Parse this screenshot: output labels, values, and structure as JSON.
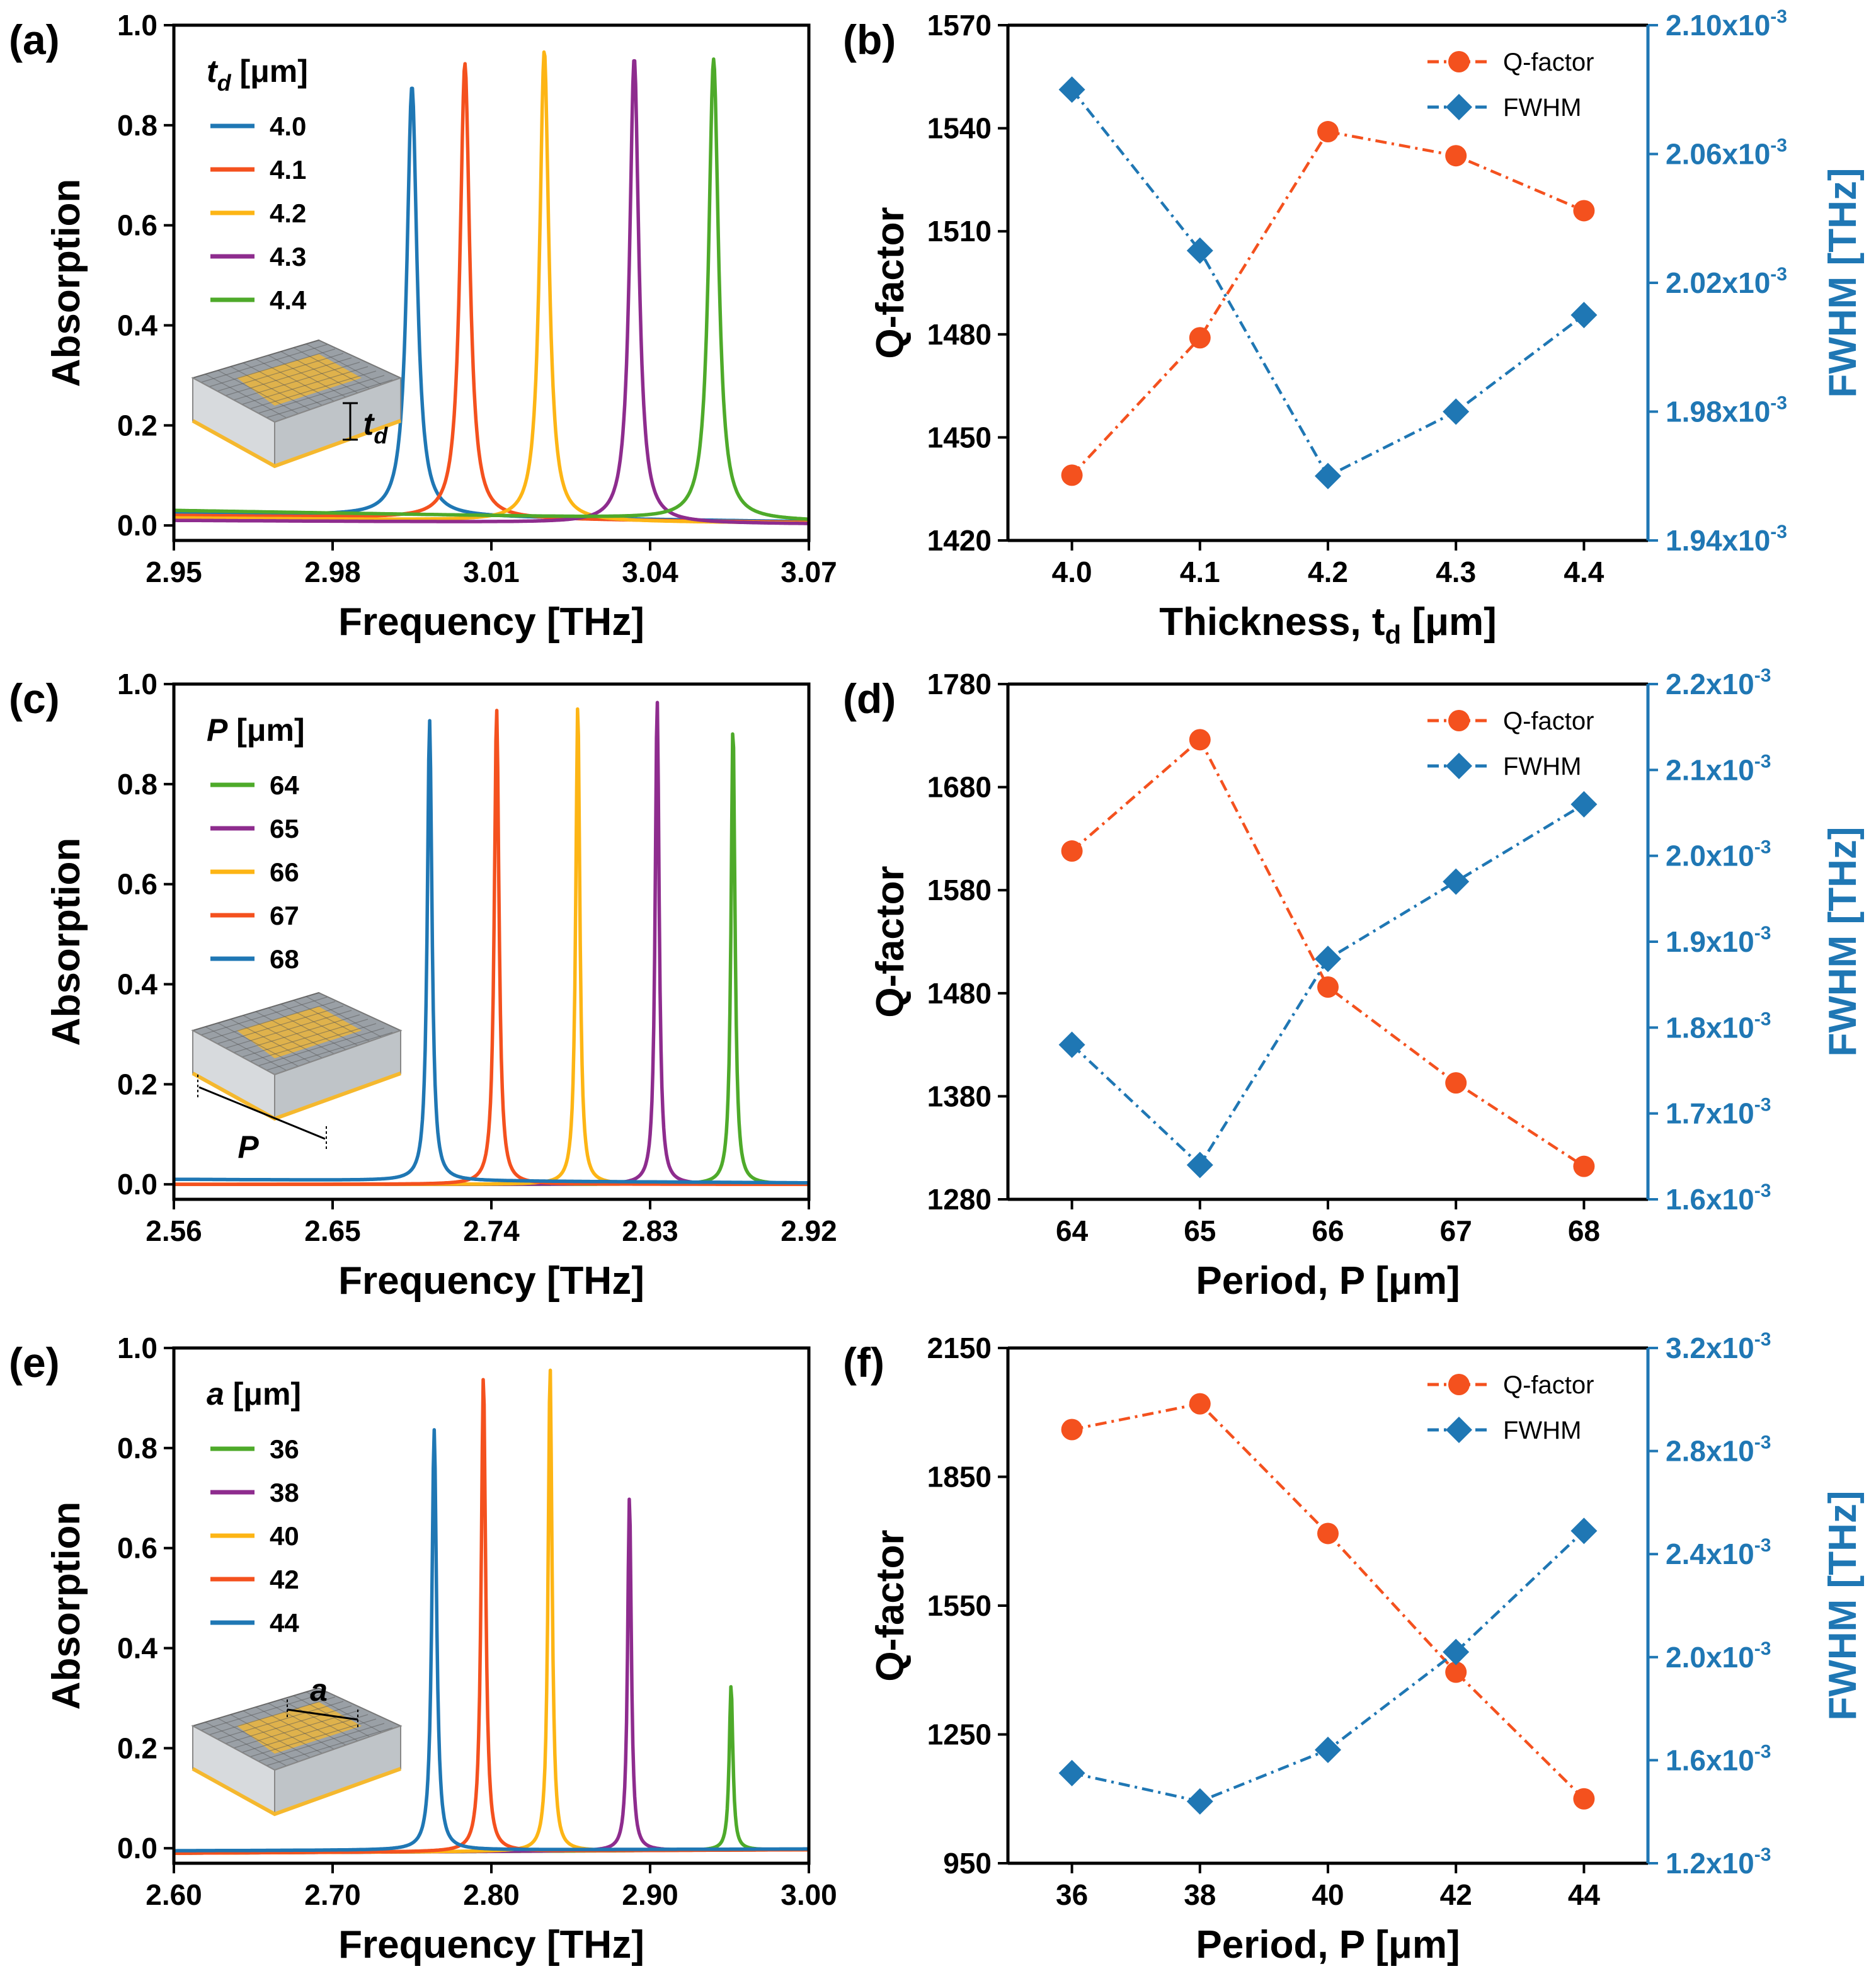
{
  "colors": {
    "orange": "#F4511E",
    "blue": "#1F77B4",
    "yellow": "#FDB515",
    "purple": "#8E2C8E",
    "green": "#4EAA2A",
    "gold": "#F5B82E",
    "gray": "#888888"
  },
  "chart_data": [
    {
      "id": "a",
      "panel_label": "(a)",
      "type": "line",
      "xlabel": "Frequency [THz]",
      "ylabel": "Absorption",
      "xlim": [
        2.95,
        3.07
      ],
      "ylim": [
        -0.03,
        1.0
      ],
      "xticks": [
        2.95,
        2.98,
        3.01,
        3.04,
        3.07
      ],
      "xtick_labels": [
        "2.95",
        "2.98",
        "3.01",
        "3.04",
        "3.07"
      ],
      "yticks": [
        0.0,
        0.2,
        0.4,
        0.6,
        0.8,
        1.0
      ],
      "ytick_labels": [
        "0.0",
        "0.2",
        "0.4",
        "0.6",
        "0.8",
        "1.0"
      ],
      "legend_title_var": "t",
      "legend_title_sub": "d",
      "legend_title_unit": " [μm]",
      "inset_label_var": "t",
      "inset_label_sub": "d",
      "series": [
        {
          "name": "4.0",
          "color": "#1F77B4",
          "center": 2.995,
          "peak": 0.86,
          "width": 0.00115,
          "baseline": 0.025
        },
        {
          "name": "4.1",
          "color": "#F4511E",
          "center": 3.005,
          "peak": 0.91,
          "width": 0.0011,
          "baseline": 0.02
        },
        {
          "name": "4.2",
          "color": "#FDB515",
          "center": 3.02,
          "peak": 0.94,
          "width": 0.00105,
          "baseline": 0.015
        },
        {
          "name": "4.3",
          "color": "#8E2C8E",
          "center": 3.037,
          "peak": 0.93,
          "width": 0.00105,
          "baseline": 0.01
        },
        {
          "name": "4.4",
          "color": "#4EAA2A",
          "center": 3.052,
          "peak": 0.92,
          "width": 0.00112,
          "baseline": 0.03
        }
      ]
    },
    {
      "id": "b",
      "panel_label": "(b)",
      "type": "line",
      "xlabel_main": "Thickness, t",
      "xlabel_sub": "d",
      "xlabel_unit": " [μm]",
      "ylabel": "Q-factor",
      "y2label": "FWHM [THz]",
      "categories": [
        "4.0",
        "4.1",
        "4.2",
        "4.3",
        "4.4"
      ],
      "x": [
        4.0,
        4.1,
        4.2,
        4.3,
        4.4
      ],
      "xlim": [
        3.95,
        4.45
      ],
      "ylim": [
        1420,
        1570
      ],
      "yticks": [
        1420,
        1450,
        1480,
        1510,
        1540,
        1570
      ],
      "ytick_labels": [
        "1420",
        "1450",
        "1480",
        "1510",
        "1540",
        "1570"
      ],
      "y2lim": [
        1.94,
        2.1
      ],
      "y2ticks": [
        1.94,
        1.98,
        2.02,
        2.06,
        2.1
      ],
      "y2tick_mantissas": [
        "1.94x10",
        "1.98x10",
        "2.02x10",
        "2.06x10",
        "2.10x10"
      ],
      "y2_exponent": "-3",
      "series": [
        {
          "name": "Q-factor",
          "axis": "left",
          "marker": "circle",
          "color": "#F4511E",
          "values": [
            1439,
            1479,
            1539,
            1532,
            1516
          ]
        },
        {
          "name": "FWHM",
          "axis": "right",
          "marker": "diamond",
          "color": "#1F77B4",
          "values": [
            2.08,
            2.03,
            1.96,
            1.98,
            2.01
          ]
        }
      ]
    },
    {
      "id": "c",
      "panel_label": "(c)",
      "type": "line",
      "xlabel": "Frequency [THz]",
      "ylabel": "Absorption",
      "xlim": [
        2.56,
        2.92
      ],
      "ylim": [
        -0.03,
        1.0
      ],
      "xticks": [
        2.56,
        2.65,
        2.74,
        2.83,
        2.92
      ],
      "xtick_labels": [
        "2.56",
        "2.65",
        "2.74",
        "2.83",
        "2.92"
      ],
      "yticks": [
        0.0,
        0.2,
        0.4,
        0.6,
        0.8,
        1.0
      ],
      "ytick_labels": [
        "0.0",
        "0.2",
        "0.4",
        "0.6",
        "0.8",
        "1.0"
      ],
      "legend_title_var": "P",
      "legend_title_sub": "",
      "legend_title_unit": " [μm]",
      "inset_label_var": "P",
      "inset_label_sub": "",
      "series": [
        {
          "name": "64",
          "color": "#4EAA2A",
          "center": 2.877,
          "peak": 0.92,
          "width": 0.00135,
          "baseline": 0.0
        },
        {
          "name": "65",
          "color": "#8E2C8E",
          "center": 2.834,
          "peak": 0.97,
          "width": 0.00135,
          "baseline": 0.0
        },
        {
          "name": "66",
          "color": "#FDB515",
          "center": 2.789,
          "peak": 0.96,
          "width": 0.0014,
          "baseline": 0.0
        },
        {
          "name": "67",
          "color": "#F4511E",
          "center": 2.743,
          "peak": 0.95,
          "width": 0.0016,
          "baseline": 0.0
        },
        {
          "name": "68",
          "color": "#1F77B4",
          "center": 2.705,
          "peak": 0.92,
          "width": 0.0016,
          "baseline": 0.01
        }
      ]
    },
    {
      "id": "d",
      "panel_label": "(d)",
      "type": "line",
      "xlabel": "Period, P [μm]",
      "ylabel": "Q-factor",
      "y2label": "FWHM [THz]",
      "categories": [
        "64",
        "65",
        "66",
        "67",
        "68"
      ],
      "x": [
        64,
        65,
        66,
        67,
        68
      ],
      "xlim": [
        63.5,
        68.5
      ],
      "ylim": [
        1280,
        1780
      ],
      "yticks": [
        1280,
        1380,
        1480,
        1580,
        1680,
        1780
      ],
      "ytick_labels": [
        "1280",
        "1380",
        "1480",
        "1580",
        "1680",
        "1780"
      ],
      "y2lim": [
        1.6,
        2.2
      ],
      "y2ticks": [
        1.6,
        1.7,
        1.8,
        1.9,
        2.0,
        2.1,
        2.2
      ],
      "y2tick_mantissas": [
        "1.6x10",
        "1.7x10",
        "1.8x10",
        "1.9x10",
        "2.0x10",
        "2.1x10",
        "2.2x10"
      ],
      "y2_exponent": "-3",
      "series": [
        {
          "name": "Q-factor",
          "axis": "left",
          "marker": "circle",
          "color": "#F4511E",
          "values": [
            1618,
            1726,
            1486,
            1393,
            1312
          ]
        },
        {
          "name": "FWHM",
          "axis": "right",
          "marker": "diamond",
          "color": "#1F77B4",
          "values": [
            1.78,
            1.64,
            1.88,
            1.97,
            2.06
          ]
        }
      ]
    },
    {
      "id": "e",
      "panel_label": "(e)",
      "type": "line",
      "xlabel": "Frequency [THz]",
      "ylabel": "Absorption",
      "xlim": [
        2.6,
        3.0
      ],
      "ylim": [
        -0.03,
        1.0
      ],
      "xticks": [
        2.6,
        2.7,
        2.8,
        2.9,
        3.0
      ],
      "xtick_labels": [
        "2.60",
        "2.70",
        "2.80",
        "2.90",
        "3.00"
      ],
      "yticks": [
        0.0,
        0.2,
        0.4,
        0.6,
        0.8,
        1.0
      ],
      "ytick_labels": [
        "0.0",
        "0.2",
        "0.4",
        "0.6",
        "0.8",
        "1.0"
      ],
      "legend_title_var": "a",
      "legend_title_sub": "",
      "legend_title_unit": " [μm]",
      "inset_label_var": "a",
      "inset_label_sub": "",
      "series": [
        {
          "name": "36",
          "color": "#4EAA2A",
          "center": 2.951,
          "peak": 0.33,
          "width": 0.0014,
          "baseline": -0.01
        },
        {
          "name": "38",
          "color": "#8E2C8E",
          "center": 2.887,
          "peak": 0.71,
          "width": 0.0014,
          "baseline": -0.01
        },
        {
          "name": "40",
          "color": "#FDB515",
          "center": 2.837,
          "peak": 0.97,
          "width": 0.0015,
          "baseline": -0.01
        },
        {
          "name": "42",
          "color": "#F4511E",
          "center": 2.795,
          "peak": 0.95,
          "width": 0.0017,
          "baseline": -0.01
        },
        {
          "name": "44",
          "color": "#1F77B4",
          "center": 2.764,
          "peak": 0.84,
          "width": 0.0018,
          "baseline": -0.005
        }
      ]
    },
    {
      "id": "f",
      "panel_label": "(f)",
      "type": "line",
      "xlabel": "Period, P [μm]",
      "ylabel": "Q-factor",
      "y2label": "FWHM [THz]",
      "categories": [
        "36",
        "38",
        "40",
        "42",
        "44"
      ],
      "x": [
        36,
        38,
        40,
        42,
        44
      ],
      "xlim": [
        35,
        45
      ],
      "ylim": [
        950,
        2150
      ],
      "yticks": [
        950,
        1250,
        1550,
        1850,
        2150
      ],
      "ytick_labels": [
        "950",
        "1250",
        "1550",
        "1850",
        "2150"
      ],
      "y2lim": [
        1.2,
        3.2
      ],
      "y2ticks": [
        1.2,
        1.6,
        2.0,
        2.4,
        2.8,
        3.2
      ],
      "y2tick_mantissas": [
        "1.2x10",
        "1.6x10",
        "2.0x10",
        "2.4x10",
        "2.8x10",
        "3.2x10"
      ],
      "y2_exponent": "-3",
      "series": [
        {
          "name": "Q-factor",
          "axis": "left",
          "marker": "circle",
          "color": "#F4511E",
          "values": [
            1960,
            2020,
            1718,
            1395,
            1100
          ]
        },
        {
          "name": "FWHM",
          "axis": "right",
          "marker": "diamond",
          "color": "#1F77B4",
          "values": [
            1.55,
            1.44,
            1.64,
            2.02,
            2.49
          ]
        }
      ]
    }
  ]
}
